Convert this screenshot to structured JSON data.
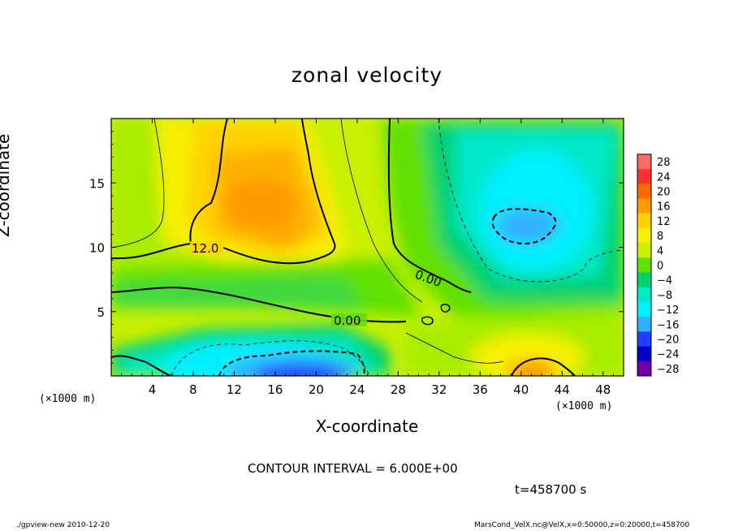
{
  "chart_data": {
    "type": "heatmap",
    "title": "zonal velocity",
    "xlabel": "X-coordinate",
    "ylabel": "Z-coordinate",
    "x_unit": "(×1000 m)",
    "xlim": [
      0,
      50
    ],
    "ylim": [
      0,
      20
    ],
    "x_ticks": [
      4,
      8,
      12,
      16,
      20,
      24,
      28,
      32,
      36,
      40,
      44,
      48
    ],
    "y_ticks": [
      5,
      10,
      15
    ],
    "colorbar": {
      "levels": [
        28,
        24,
        20,
        16,
        12,
        8,
        4,
        0,
        -4,
        -8,
        -12,
        -16,
        -20,
        -24,
        -28
      ],
      "colors": [
        "#ff6a6a",
        "#ff3030",
        "#ff6a00",
        "#ff9a00",
        "#ffd200",
        "#f5f000",
        "#c8f000",
        "#60e000",
        "#00d070",
        "#00e8c8",
        "#00f0ff",
        "#30b0ff",
        "#2040ff",
        "#0000c0",
        "#7000a0"
      ]
    },
    "contour_labels": [
      "12.0",
      "0.00",
      "0.00"
    ],
    "contour_interval": 6.0
  },
  "annotations": {
    "contour_interval_text": "CONTOUR INTERVAL = 6.000E+00",
    "time_text": "t=458700 s",
    "footer_left": "./gpview-new   2010-12-20",
    "footer_right": "MarsCond_VelX.nc@VelX,x=0:50000,z=0:20000,t=458700"
  }
}
